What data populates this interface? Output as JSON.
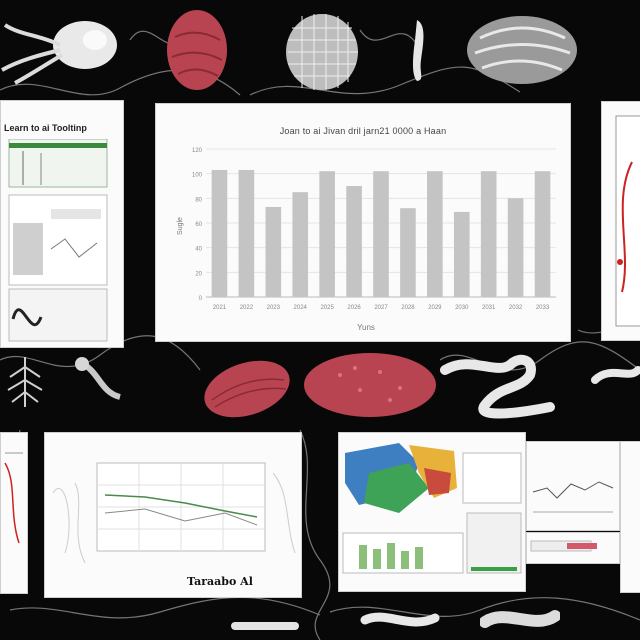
{
  "collage": {
    "left_panel_title": "Learn to ai Tooltinp",
    "bottom_caption": "Taraabo Al"
  },
  "chart_data": {
    "type": "bar",
    "title": "Joan to ai Jivan dril jarn21 0000 a Haan",
    "xlabel": "Yuns",
    "ylabel": "Sugle",
    "categories": [
      "2021",
      "2022",
      "2023",
      "2024",
      "2025",
      "2026",
      "2027",
      "2028",
      "2029",
      "2030",
      "2031",
      "2032",
      "2033"
    ],
    "values": [
      103,
      103,
      73,
      85,
      102,
      90,
      102,
      72,
      102,
      69,
      102,
      80,
      102
    ],
    "ylim": [
      0,
      120
    ],
    "yticks": [
      0,
      20,
      40,
      60,
      80,
      100,
      120
    ],
    "grid": true,
    "bar_color": "#c4c4c4"
  },
  "colors": {
    "background": "#080808",
    "tissue_red": "#b84452",
    "bone_white": "#e8e8e8"
  }
}
